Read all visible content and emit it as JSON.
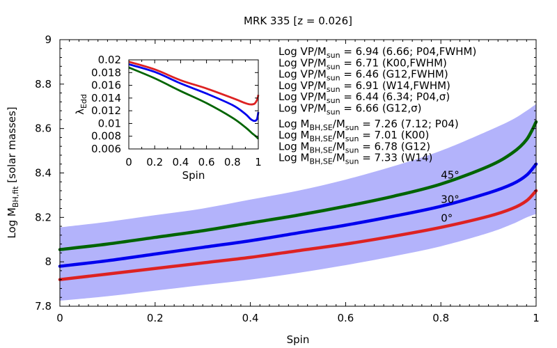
{
  "chart_data": [
    {
      "id": "main",
      "type": "line",
      "title": "MRK 335  [z = 0.026]",
      "xlabel": "Spin",
      "ylabel": "Log M",
      "ylabel_sub": "BH,fit",
      "ylabel_suffix": "  [solar masses]",
      "xlim": [
        0,
        1
      ],
      "ylim": [
        7.8,
        9.0
      ],
      "xticks": [
        0,
        0.2,
        0.4,
        0.6,
        0.8,
        1
      ],
      "xtick_labels": [
        "0",
        "0.2",
        "0.4",
        "0.6",
        "0.8",
        "1"
      ],
      "yticks": [
        7.8,
        8.0,
        8.2,
        8.4,
        8.6,
        8.8,
        9.0
      ],
      "ytick_labels": [
        "7.8",
        "8",
        "8.2",
        "8.4",
        "8.6",
        "8.8",
        "9"
      ],
      "band": {
        "color": "#b3b3fb",
        "x": [
          0,
          0.1,
          0.2,
          0.3,
          0.4,
          0.5,
          0.6,
          0.7,
          0.8,
          0.9,
          0.95,
          0.98,
          1.0
        ],
        "upper": [
          8.155,
          8.18,
          8.21,
          8.24,
          8.28,
          8.32,
          8.37,
          8.43,
          8.5,
          8.59,
          8.64,
          8.68,
          8.71
        ],
        "lower": [
          7.825,
          7.845,
          7.87,
          7.895,
          7.92,
          7.95,
          7.985,
          8.025,
          8.07,
          8.13,
          8.17,
          8.2,
          8.215
        ]
      },
      "series": [
        {
          "name": "0°",
          "color": "#dd2222",
          "label_color": "#990066",
          "label_x": 0.8,
          "label_y": 8.18,
          "x": [
            0,
            0.1,
            0.2,
            0.3,
            0.4,
            0.5,
            0.6,
            0.7,
            0.8,
            0.9,
            0.95,
            0.98,
            1.0
          ],
          "values": [
            7.92,
            7.945,
            7.97,
            7.995,
            8.02,
            8.05,
            8.08,
            8.115,
            8.155,
            8.205,
            8.24,
            8.275,
            8.32
          ]
        },
        {
          "name": "30°",
          "color": "#0000ee",
          "label_color": "#0000ee",
          "label_x": 0.8,
          "label_y": 8.265,
          "x": [
            0,
            0.1,
            0.2,
            0.3,
            0.4,
            0.5,
            0.6,
            0.7,
            0.8,
            0.9,
            0.95,
            0.98,
            1.0
          ],
          "values": [
            7.98,
            8.005,
            8.035,
            8.065,
            8.095,
            8.13,
            8.165,
            8.205,
            8.25,
            8.31,
            8.35,
            8.39,
            8.44
          ]
        },
        {
          "name": "45°",
          "color": "#006400",
          "label_color": "#003366",
          "label_x": 0.8,
          "label_y": 8.375,
          "x": [
            0,
            0.1,
            0.2,
            0.3,
            0.4,
            0.5,
            0.6,
            0.7,
            0.8,
            0.9,
            0.95,
            0.98,
            1.0
          ],
          "values": [
            8.055,
            8.08,
            8.11,
            8.14,
            8.175,
            8.21,
            8.25,
            8.295,
            8.35,
            8.43,
            8.49,
            8.55,
            8.63
          ]
        }
      ],
      "annotations": [
        {
          "group": "vp",
          "pre": "Log VP/M",
          "sub": "sun",
          "post": " = 6.94 (6.66; P04,FWHM)"
        },
        {
          "group": "vp",
          "pre": "Log VP/M",
          "sub": "sun",
          "post": " = 6.71 (K00,FWHM)"
        },
        {
          "group": "vp",
          "pre": "Log VP/M",
          "sub": "sun",
          "post": " = 6.46 (G12,FWHM)"
        },
        {
          "group": "vp",
          "pre": "Log VP/M",
          "sub": "sun",
          "post": " = 6.91 (W14,FWHM)"
        },
        {
          "group": "vp",
          "pre": "Log VP/M",
          "sub": "sun",
          "post": " = 6.44 (6.34; P04,σ)"
        },
        {
          "group": "vp",
          "pre": "Log VP/M",
          "sub": "sun",
          "post": " = 6.66 (G12,σ)"
        },
        {
          "group": "bh",
          "pre": "Log M",
          "sub": "BH,SE",
          "mid": "/M",
          "sub2": "sun",
          "post": " = 7.26 (7.12; P04)"
        },
        {
          "group": "bh",
          "pre": "Log M",
          "sub": "BH,SE",
          "mid": "/M",
          "sub2": "sun",
          "post": " = 7.01 (K00)"
        },
        {
          "group": "bh",
          "pre": "Log M",
          "sub": "BH,SE",
          "mid": "/M",
          "sub2": "sun",
          "post": " = 6.78 (G12)"
        },
        {
          "group": "bh",
          "pre": "Log M",
          "sub": "BH,SE",
          "mid": "/M",
          "sub2": "sun",
          "post": " = 7.33 (W14)"
        }
      ]
    },
    {
      "id": "inset",
      "type": "line",
      "xlabel": "Spin",
      "ylabel": "λ",
      "ylabel_sub": "Edd",
      "xlim": [
        0,
        1
      ],
      "ylim": [
        0.006,
        0.02
      ],
      "xticks": [
        0,
        0.2,
        0.4,
        0.6,
        0.8,
        1
      ],
      "xtick_labels": [
        "0",
        "0.2",
        "0.4",
        "0.6",
        "0.8",
        "1"
      ],
      "yticks": [
        0.006,
        0.008,
        0.01,
        0.012,
        0.014,
        0.016,
        0.018,
        0.02
      ],
      "ytick_labels": [
        "0.006",
        "0.008",
        "0.01",
        "0.012",
        "0.014",
        "0.016",
        "0.018",
        "0.02"
      ],
      "series": [
        {
          "name": "0°",
          "color": "#dd2222",
          "x": [
            0,
            0.2,
            0.4,
            0.6,
            0.8,
            0.9,
            0.94,
            0.97,
            0.99,
            1.0
          ],
          "values": [
            0.0197,
            0.0185,
            0.0168,
            0.0155,
            0.014,
            0.0132,
            0.013,
            0.0131,
            0.0137,
            0.0145
          ]
        },
        {
          "name": "30°",
          "color": "#0000ee",
          "x": [
            0,
            0.2,
            0.4,
            0.6,
            0.8,
            0.9,
            0.94,
            0.97,
            0.99,
            1.0
          ],
          "values": [
            0.0193,
            0.0181,
            0.0163,
            0.0147,
            0.0129,
            0.0115,
            0.0107,
            0.0104,
            0.0107,
            0.0118
          ]
        },
        {
          "name": "45°",
          "color": "#006400",
          "x": [
            0,
            0.2,
            0.4,
            0.6,
            0.8,
            0.9,
            0.95,
            0.98,
            1.0
          ],
          "values": [
            0.0188,
            0.0171,
            0.0151,
            0.0132,
            0.0109,
            0.0094,
            0.0085,
            0.008,
            0.0076
          ]
        }
      ]
    }
  ]
}
